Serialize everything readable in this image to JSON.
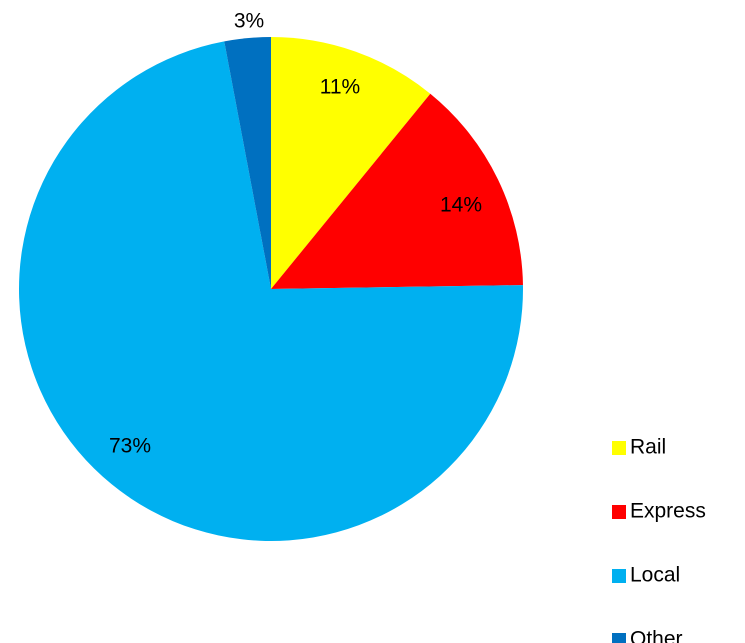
{
  "chart_data": {
    "type": "pie",
    "title": "",
    "legend_position": "right-bottom",
    "slices": [
      {
        "name": "Rail",
        "value": 11,
        "label": "11%",
        "color": "#FFFF00"
      },
      {
        "name": "Express",
        "value": 14,
        "label": "14%",
        "color": "#FF0000"
      },
      {
        "name": "Local",
        "value": 73,
        "label": "73%",
        "color": "#00B0F0"
      },
      {
        "name": "Other",
        "value": 3,
        "label": "3%",
        "color": "#0070C0"
      }
    ]
  }
}
